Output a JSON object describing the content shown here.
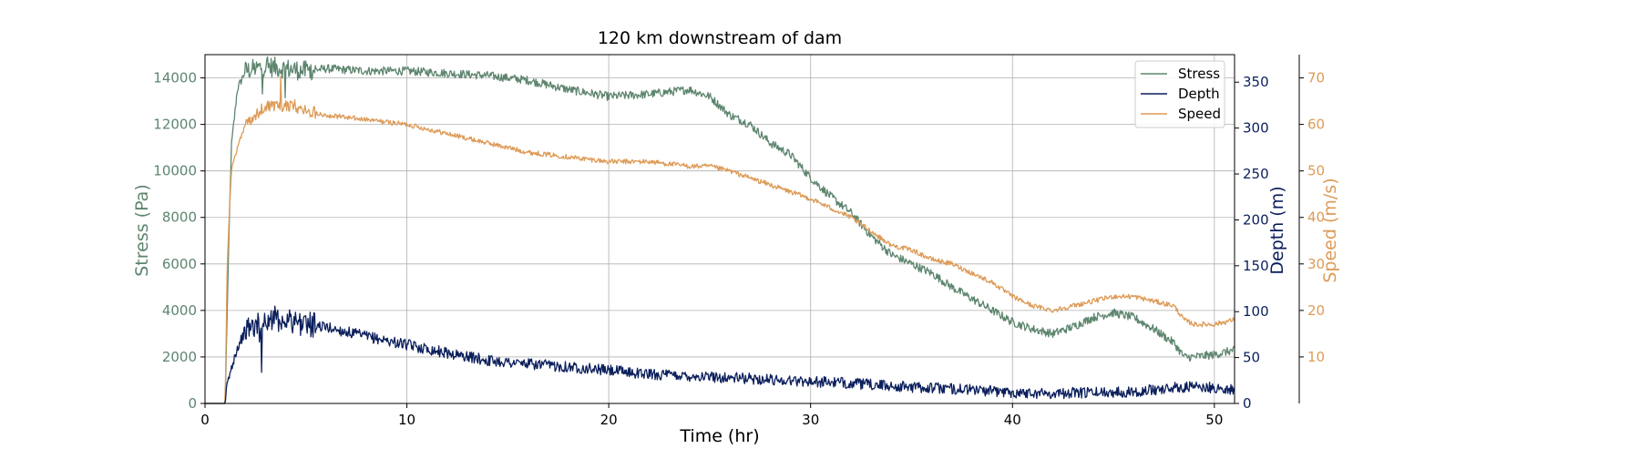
{
  "chart_data": {
    "type": "line",
    "title": "120 km downstream of dam",
    "xlabel": "Time (hr)",
    "xlim": [
      0,
      51
    ],
    "xticks": [
      0,
      10,
      20,
      30,
      40,
      50
    ],
    "grid": true,
    "legend": {
      "placement": "top-right",
      "entries": [
        "Stress",
        "Depth",
        "Speed"
      ]
    },
    "axes": {
      "stress": {
        "label": "Stress (Pa)",
        "ylim": [
          0,
          15000
        ],
        "ticks": [
          0,
          2000,
          4000,
          6000,
          8000,
          10000,
          12000,
          14000
        ],
        "side": "left",
        "color": "#5d856e"
      },
      "depth": {
        "label": "Depth (m)",
        "ylim": [
          0,
          380
        ],
        "ticks": [
          0,
          50,
          100,
          150,
          200,
          250,
          300,
          350
        ],
        "side": "right",
        "color": "#0b1f5c"
      },
      "speed": {
        "label": "Speed (m/s)",
        "ylim": [
          0,
          75
        ],
        "ticks": [
          10,
          20,
          30,
          40,
          50,
          60,
          70
        ],
        "side": "right-outer",
        "color": "#dd9b57"
      }
    },
    "series": [
      {
        "name": "Stress",
        "axis": "stress",
        "color": "#5d856e",
        "noise": 0.035,
        "x": [
          0,
          1.0,
          1.1,
          1.3,
          1.6,
          2,
          3,
          4,
          5,
          6,
          8,
          10,
          12,
          14,
          16,
          18,
          20,
          22,
          24,
          25,
          26,
          27,
          28,
          29,
          30,
          31,
          32,
          33,
          34,
          35,
          36,
          37,
          38,
          39,
          40,
          41,
          42,
          43,
          44,
          45,
          46,
          47,
          48,
          48.5,
          49,
          50,
          51
        ],
        "y": [
          0,
          0,
          4000,
          11000,
          13500,
          14300,
          14500,
          14400,
          14300,
          14400,
          14300,
          14300,
          14200,
          14100,
          13900,
          13500,
          13200,
          13300,
          13500,
          13200,
          12400,
          12000,
          11200,
          10700,
          9700,
          8900,
          8200,
          7200,
          6400,
          6000,
          5600,
          5000,
          4500,
          4000,
          3500,
          3200,
          3000,
          3300,
          3700,
          3900,
          3700,
          3200,
          2600,
          2000,
          2000,
          2100,
          2300
        ]
      },
      {
        "name": "Depth",
        "axis": "depth",
        "color": "#0b1f5c",
        "noise": 0.045,
        "x": [
          0,
          1.0,
          1.1,
          1.5,
          2,
          3,
          4,
          5,
          6,
          8,
          10,
          12,
          14,
          16,
          18,
          20,
          22,
          24,
          26,
          28,
          30,
          32,
          34,
          36,
          38,
          40,
          42,
          44,
          46,
          48,
          48.5,
          49,
          50,
          51
        ],
        "y": [
          0,
          0,
          20,
          55,
          80,
          92,
          92,
          87,
          83,
          73,
          64,
          55,
          47,
          43,
          40,
          36,
          32,
          30,
          28,
          26,
          24,
          22,
          19,
          17,
          15,
          12,
          11,
          12,
          13,
          17,
          18,
          18,
          17,
          15
        ]
      },
      {
        "name": "Speed",
        "axis": "speed",
        "color": "#dd9b57",
        "noise": 0.02,
        "x": [
          0,
          1.0,
          1.1,
          1.3,
          1.6,
          2,
          3,
          4,
          5,
          6,
          8,
          10,
          12,
          14,
          16,
          18,
          20,
          22,
          24,
          25,
          26,
          28,
          30,
          31,
          32,
          33,
          34,
          35,
          36,
          37,
          38,
          39,
          40,
          41,
          42,
          43,
          44,
          45,
          46,
          47,
          48,
          48.5,
          49,
          50,
          51
        ],
        "y": [
          0,
          0,
          30,
          50,
          55,
          60,
          64,
          64,
          63,
          62,
          61,
          60,
          58,
          56,
          54,
          53,
          52,
          52,
          51,
          51,
          50,
          47,
          44,
          42,
          40,
          37,
          34,
          33,
          31,
          30,
          28,
          26,
          23,
          21,
          20,
          21,
          22,
          23,
          23,
          22,
          21,
          18,
          17,
          17,
          18
        ]
      }
    ]
  }
}
